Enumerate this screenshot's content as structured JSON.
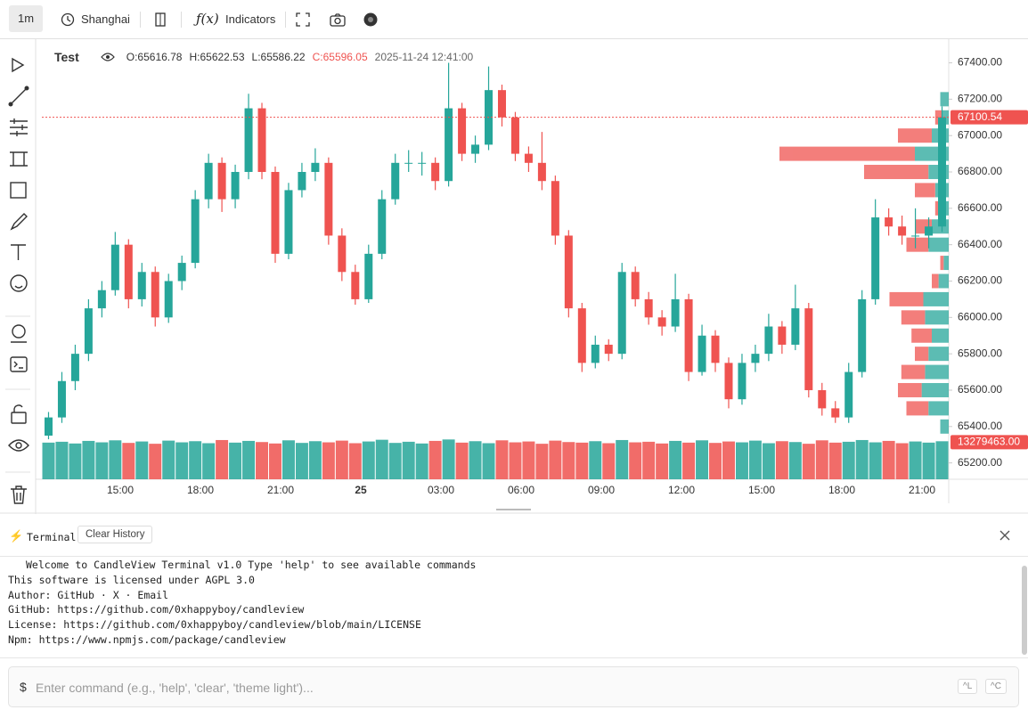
{
  "toolbar": {
    "interval": "1m",
    "timezone": "Shanghai",
    "indicators": "Indicators"
  },
  "chart_data": {
    "type": "candlestick",
    "symbol": "Test",
    "legend": {
      "open": "O:65616.78",
      "high": "H:65622.53",
      "low": "L:65586.22",
      "close": "C:65596.05",
      "time": "2025-11-24 12:41:00"
    },
    "x_labels": [
      "15:00",
      "18:00",
      "21:00",
      "25",
      "03:00",
      "06:00",
      "09:00",
      "12:00",
      "15:00",
      "18:00",
      "21:00"
    ],
    "up_color": "#26a69a",
    "down_color": "#ef5350",
    "ohlc": [
      [
        65350,
        65480,
        65330,
        65450
      ],
      [
        65450,
        65700,
        65420,
        65650
      ],
      [
        65650,
        65850,
        65600,
        65800
      ],
      [
        65800,
        66100,
        65760,
        66050
      ],
      [
        66050,
        66200,
        66000,
        66150
      ],
      [
        66150,
        66470,
        66120,
        66400
      ],
      [
        66400,
        66430,
        66050,
        66100
      ],
      [
        66100,
        66300,
        66060,
        66250
      ],
      [
        66250,
        66280,
        65950,
        66000
      ],
      [
        66000,
        66240,
        65970,
        66200
      ],
      [
        66200,
        66340,
        66150,
        66300
      ],
      [
        66300,
        66700,
        66270,
        66650
      ],
      [
        66650,
        66900,
        66600,
        66850
      ],
      [
        66850,
        66880,
        66580,
        66650
      ],
      [
        66650,
        66840,
        66600,
        66800
      ],
      [
        66800,
        67230,
        66760,
        67150
      ],
      [
        67150,
        67180,
        66760,
        66800
      ],
      [
        66800,
        66830,
        66300,
        66350
      ],
      [
        66350,
        66740,
        66320,
        66700
      ],
      [
        66700,
        66850,
        66660,
        66800
      ],
      [
        66800,
        66930,
        66750,
        66850
      ],
      [
        66850,
        66880,
        66400,
        66450
      ],
      [
        66450,
        66490,
        66200,
        66250
      ],
      [
        66250,
        66290,
        66070,
        66100
      ],
      [
        66100,
        66400,
        66080,
        66350
      ],
      [
        66350,
        66700,
        66320,
        66650
      ],
      [
        66650,
        66900,
        66620,
        66850
      ],
      [
        66850,
        66920,
        66800,
        66850
      ],
      [
        66850,
        66910,
        66780,
        66850
      ],
      [
        66850,
        66880,
        66700,
        66750
      ],
      [
        66750,
        67400,
        66720,
        67150
      ],
      [
        67150,
        67180,
        66860,
        66900
      ],
      [
        66900,
        67000,
        66850,
        66950
      ],
      [
        66950,
        67380,
        66920,
        67250
      ],
      [
        67250,
        67280,
        67050,
        67100
      ],
      [
        67100,
        67130,
        66860,
        66900
      ],
      [
        66900,
        66940,
        66800,
        66850
      ],
      [
        66850,
        67020,
        66700,
        66750
      ],
      [
        66750,
        66780,
        66400,
        66450
      ],
      [
        66450,
        66480,
        66000,
        66050
      ],
      [
        66050,
        66080,
        65700,
        65750
      ],
      [
        65750,
        65900,
        65720,
        65850
      ],
      [
        65850,
        65880,
        65760,
        65800
      ],
      [
        65800,
        66300,
        65770,
        66250
      ],
      [
        66250,
        66280,
        66060,
        66100
      ],
      [
        66100,
        66140,
        65960,
        66000
      ],
      [
        66000,
        66040,
        65900,
        65950
      ],
      [
        65950,
        66240,
        65920,
        66100
      ],
      [
        66100,
        66130,
        65650,
        65700
      ],
      [
        65700,
        65960,
        65680,
        65900
      ],
      [
        65900,
        65930,
        65700,
        65750
      ],
      [
        65750,
        65780,
        65500,
        65550
      ],
      [
        65550,
        65800,
        65520,
        65750
      ],
      [
        65750,
        65850,
        65700,
        65800
      ],
      [
        65800,
        66020,
        65760,
        65950
      ],
      [
        65950,
        65980,
        65800,
        65850
      ],
      [
        65850,
        66180,
        65820,
        66050
      ],
      [
        66050,
        66080,
        65560,
        65600
      ],
      [
        65600,
        65640,
        65460,
        65500
      ],
      [
        65500,
        65540,
        65420,
        65450
      ],
      [
        65450,
        65750,
        65420,
        65700
      ],
      [
        65700,
        66150,
        65670,
        66100
      ],
      [
        66100,
        66650,
        66070,
        66550
      ],
      [
        66550,
        66600,
        66450,
        66500
      ],
      [
        66500,
        66560,
        66400,
        66450
      ],
      [
        66450,
        66600,
        66380,
        66450
      ],
      [
        66450,
        66550,
        66380,
        66500
      ],
      [
        66500,
        67160,
        66470,
        67100
      ]
    ],
    "volume": [
      12800000,
      13100000,
      12500000,
      13400000,
      12900000,
      13600000,
      12700000,
      13200000,
      12400000,
      13500000,
      12900000,
      13300000,
      12600000,
      13700000,
      12800000,
      13400000,
      13000000,
      12500000,
      13600000,
      12700000,
      13300000,
      12900000,
      13500000,
      12600000,
      13200000,
      13800000,
      12700000,
      13100000,
      12500000,
      13400000,
      13900000,
      12800000,
      13300000,
      12600000,
      13600000,
      12900000,
      13200000,
      12400000,
      13500000,
      13000000,
      12800000,
      13300000,
      12600000,
      13700000,
      12900000,
      13100000,
      12500000,
      13400000,
      12800000,
      13600000,
      12700000,
      13200000,
      12900000,
      13500000,
      12600000,
      13300000,
      13000000,
      12400000,
      13600000,
      12800000,
      13100000,
      13700000,
      12900000,
      13400000,
      12600000,
      13200000,
      12800000,
      13279463
    ],
    "volume_lim": [
      0,
      14000000
    ],
    "ylim": [
      65110,
      67530
    ],
    "yticks": [
      {
        "value": 65200,
        "label": "65200.00"
      },
      {
        "value": 65400,
        "label": "65400.00"
      },
      {
        "value": 65600,
        "label": "65600.00"
      },
      {
        "value": 65800,
        "label": "65800.00"
      },
      {
        "value": 66000,
        "label": "66000.00"
      },
      {
        "value": 66200,
        "label": "66200.00"
      },
      {
        "value": 66400,
        "label": "66400.00"
      },
      {
        "value": 66600,
        "label": "66600.00"
      },
      {
        "value": 66800,
        "label": "66800.00"
      },
      {
        "value": 67000,
        "label": "67000.00"
      },
      {
        "value": 67200,
        "label": "67200.00"
      },
      {
        "value": 67400,
        "label": "67400.00"
      }
    ],
    "last_price": 67100.54,
    "last_volume": {
      "value": 13279463,
      "label": "13279463.00"
    },
    "volume_profile": {
      "prices": [
        65400,
        65500,
        65600,
        65700,
        65800,
        65900,
        66000,
        66100,
        66200,
        66300,
        66400,
        66500,
        66600,
        66700,
        66800,
        66900,
        67000,
        67100,
        67200
      ],
      "buy": [
        5,
        12,
        16,
        14,
        12,
        10,
        14,
        15,
        6,
        3,
        12,
        10,
        4,
        8,
        12,
        20,
        10,
        4,
        5
      ],
      "sell": [
        0,
        13,
        14,
        14,
        8,
        12,
        14,
        20,
        4,
        2,
        13,
        10,
        4,
        12,
        38,
        80,
        20,
        4,
        0
      ],
      "lim": [
        0,
        100
      ]
    }
  },
  "terminal": {
    "title": "Terminal",
    "clear": "Clear History",
    "lines": [
      "Welcome to CandleView Terminal v1.0 Type 'help' to see available commands",
      "This software is licensed under AGPL 3.0",
      "Author: GitHub · X · Email",
      "GitHub: https://github.com/0xhappyboy/candleview",
      "License: https://github.com/0xhappyboy/candleview/blob/main/LICENSE",
      "Npm: https://www.npmjs.com/package/candleview"
    ],
    "prompt": "$",
    "placeholder": "Enter command (e.g., 'help', 'clear', 'theme light')...",
    "shortcuts": [
      "^L",
      "^C"
    ]
  }
}
